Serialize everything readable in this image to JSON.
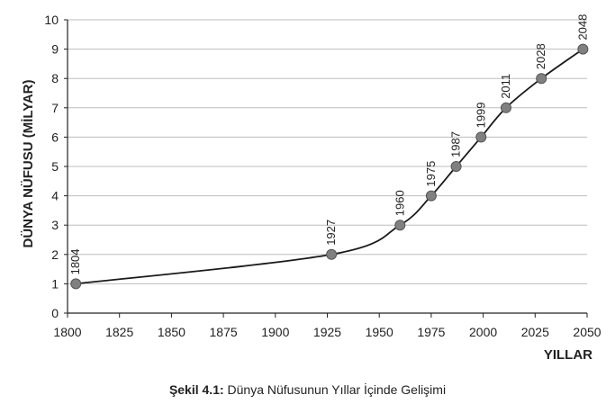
{
  "chart_data": {
    "type": "line",
    "title": "",
    "xlabel": "YILLAR",
    "ylabel": "DÜNYA NÜFUSU (MİLYAR)",
    "xlim": [
      1800,
      2050
    ],
    "ylim": [
      0,
      10
    ],
    "x_ticks": [
      1800,
      1825,
      1850,
      1875,
      1900,
      1925,
      1950,
      1975,
      2000,
      2025,
      2050
    ],
    "y_ticks": [
      0,
      1,
      2,
      3,
      4,
      5,
      6,
      7,
      8,
      9,
      10
    ],
    "grid": "horizontal",
    "series": [
      {
        "color": "#808080",
        "points": [
          {
            "x": 1804,
            "y": 1,
            "label": "1804"
          },
          {
            "x": 1927,
            "y": 2,
            "label": "1927"
          },
          {
            "x": 1960,
            "y": 3,
            "label": "1960"
          },
          {
            "x": 1975,
            "y": 4,
            "label": "1975"
          },
          {
            "x": 1987,
            "y": 5,
            "label": "1987"
          },
          {
            "x": 1999,
            "y": 6,
            "label": "1999"
          },
          {
            "x": 2011,
            "y": 7,
            "label": "2011"
          },
          {
            "x": 2028,
            "y": 8,
            "label": "2028"
          },
          {
            "x": 2048,
            "y": 9,
            "label": "2048"
          }
        ]
      }
    ]
  },
  "caption": {
    "label": "Şekil 4.1:",
    "text": " Dünya Nüfusunun Yıllar İçinde Gelişimi"
  }
}
